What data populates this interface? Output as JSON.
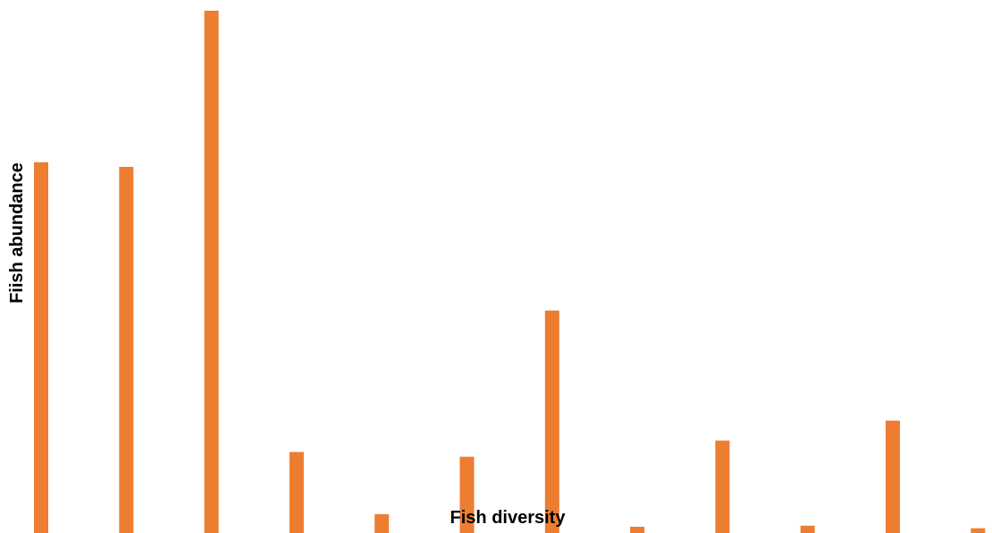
{
  "chart_data": {
    "type": "bar",
    "title": "",
    "xlabel": "Fish diversity",
    "ylabel": "Fiish abundance",
    "ylim": [
      0,
      100
    ],
    "grid": false,
    "legend": "none",
    "series": [
      {
        "values": [
          71,
          70.1,
          100,
          15.5,
          3.6,
          14.6,
          42.6,
          1.2,
          17.7,
          1.4,
          21.5,
          0.9
        ],
        "color": "#ED7D31"
      }
    ]
  }
}
